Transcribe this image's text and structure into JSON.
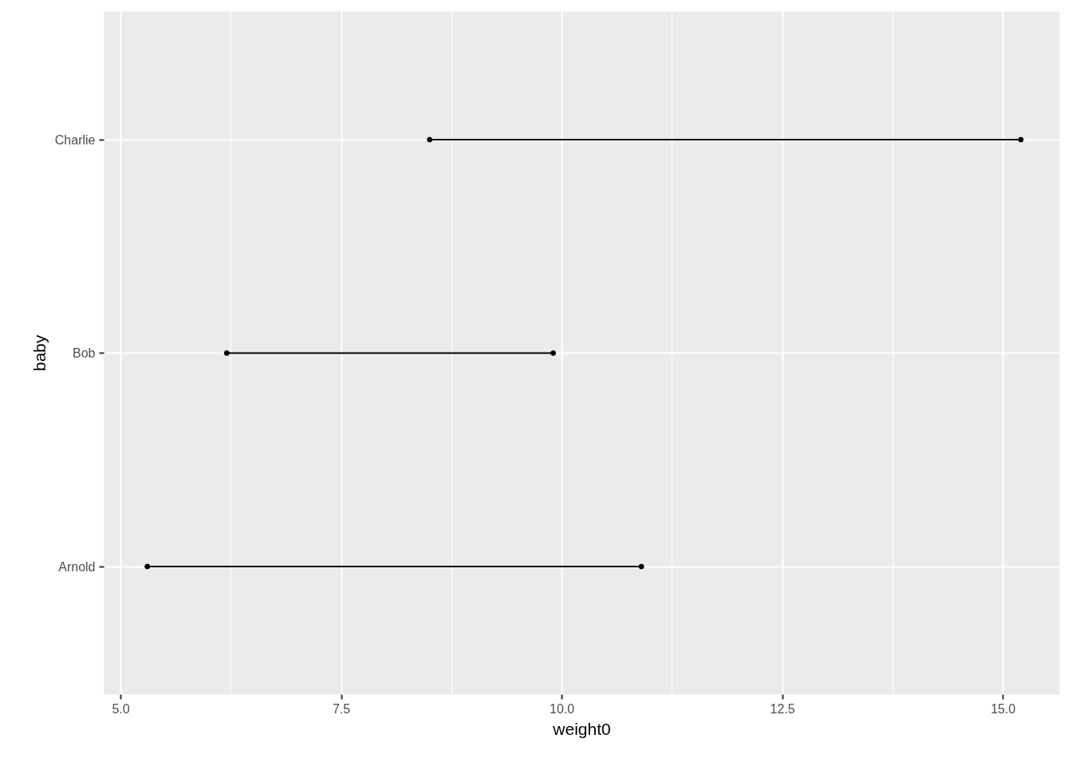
{
  "chart_data": {
    "type": "bar",
    "orientation": "horizontal",
    "xlabel": "weight0",
    "ylabel": "baby",
    "categories": [
      "Charlie",
      "Bob",
      "Arnold"
    ],
    "series": [
      {
        "color": "#000000",
        "base": [
          8.5,
          6.2,
          5.3
        ],
        "values": [
          6.7,
          3.7,
          5.6
        ]
      },
      {
        "type": "scatter",
        "color": "#000000",
        "values": [
          8.5,
          6.2,
          5.3
        ]
      },
      {
        "type": "scatter",
        "color": "#000000",
        "values": [
          15.2,
          9.9,
          10.9
        ]
      }
    ],
    "marker": "circle",
    "xlim": [
      4.81,
      15.64
    ],
    "xticks": [
      {
        "value": 5,
        "label": "5.0"
      },
      {
        "value": 7.5,
        "label": "7.5"
      },
      {
        "value": 10,
        "label": "10.0"
      },
      {
        "value": 12.5,
        "label": "12.5"
      },
      {
        "value": 15,
        "label": "15.0"
      }
    ],
    "grid": true
  }
}
